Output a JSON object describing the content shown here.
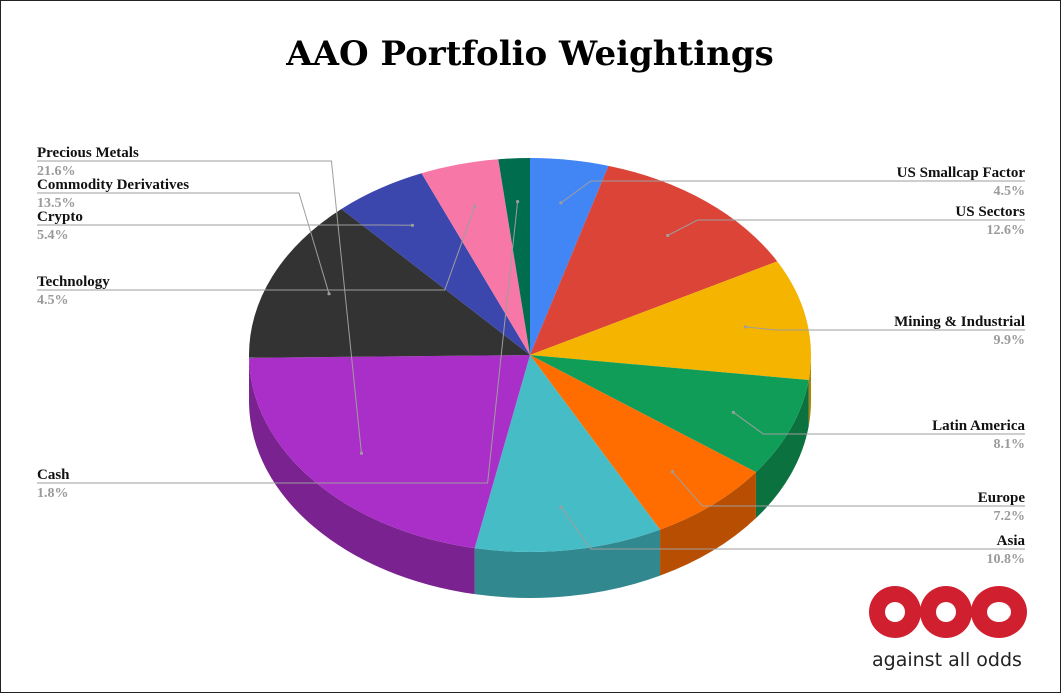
{
  "chart_data": {
    "type": "pie",
    "title": "AAO Portfolio Weightings",
    "categories": [
      "US Smallcap Factor",
      "US Sectors",
      "Mining & Industrial",
      "Latin America",
      "Europe",
      "Asia",
      "Precious Metals",
      "Commodity Derivatives",
      "Crypto",
      "Technology",
      "Cash"
    ],
    "values": [
      4.5,
      12.6,
      9.9,
      8.1,
      7.2,
      10.8,
      21.6,
      13.5,
      5.4,
      4.5,
      1.8
    ],
    "value_labels": [
      "4.5%",
      "12.6%",
      "9.9%",
      "8.1%",
      "7.2%",
      "10.8%",
      "21.6%",
      "13.5%",
      "5.4%",
      "4.5%",
      "1.8%"
    ],
    "colors": [
      "#4285f4",
      "#db4437",
      "#f4b400",
      "#0f9d58",
      "#ff6d01",
      "#46bdc6",
      "#a92fc8",
      "#333333",
      "#3b47ad",
      "#f778a6",
      "#006d4f"
    ],
    "legend": "none",
    "style": "3d"
  },
  "logo": {
    "mark": "aao",
    "tagline": "against all odds",
    "color": "#d0202f"
  }
}
